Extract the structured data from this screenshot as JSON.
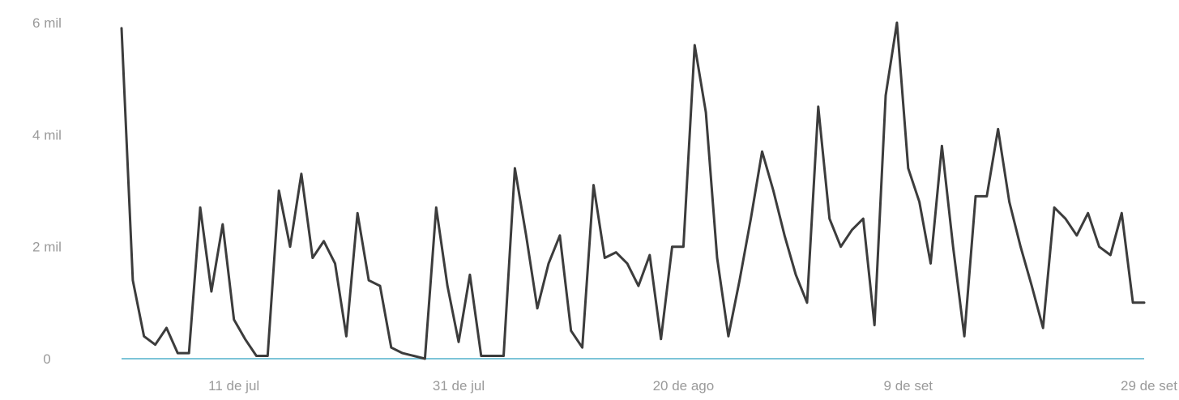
{
  "chart_data": {
    "type": "line",
    "title": "",
    "xlabel": "",
    "ylabel": "",
    "y_ticks": [
      "0",
      "2 mil",
      "4 mil",
      "6 mil"
    ],
    "x_tick_labels": [
      "11 de jul",
      "31 de jul",
      "20 de ago",
      "9 de set",
      "29 de set"
    ],
    "ylim": [
      0,
      6000
    ],
    "grid": false,
    "colors": {
      "line": "#3c3c3c",
      "baseline": "#7cc4d8",
      "tick_text": "#9a9a9a"
    },
    "series": [
      {
        "x": [
          "2024-07-01",
          "2024-07-02",
          "2024-07-03",
          "2024-07-04",
          "2024-07-05",
          "2024-07-06",
          "2024-07-07",
          "2024-07-08",
          "2024-07-09",
          "2024-07-10",
          "2024-07-11",
          "2024-07-12",
          "2024-07-13",
          "2024-07-14",
          "2024-07-15",
          "2024-07-16",
          "2024-07-17",
          "2024-07-18",
          "2024-07-19",
          "2024-07-20",
          "2024-07-21",
          "2024-07-22",
          "2024-07-23",
          "2024-07-24",
          "2024-07-25",
          "2024-07-26",
          "2024-07-27",
          "2024-07-28",
          "2024-07-29",
          "2024-07-30",
          "2024-07-31",
          "2024-08-01",
          "2024-08-02",
          "2024-08-03",
          "2024-08-04",
          "2024-08-05",
          "2024-08-06",
          "2024-08-07",
          "2024-08-08",
          "2024-08-09",
          "2024-08-10",
          "2024-08-11",
          "2024-08-12",
          "2024-08-13",
          "2024-08-14",
          "2024-08-15",
          "2024-08-16",
          "2024-08-17",
          "2024-08-18",
          "2024-08-19",
          "2024-08-20",
          "2024-08-21",
          "2024-08-22",
          "2024-08-23",
          "2024-08-24",
          "2024-08-25",
          "2024-08-26",
          "2024-08-27",
          "2024-08-28",
          "2024-08-29",
          "2024-08-30",
          "2024-08-31",
          "2024-09-01",
          "2024-09-02",
          "2024-09-03",
          "2024-09-04",
          "2024-09-05",
          "2024-09-06",
          "2024-09-07",
          "2024-09-08",
          "2024-09-09",
          "2024-09-10",
          "2024-09-11",
          "2024-09-12",
          "2024-09-13",
          "2024-09-14",
          "2024-09-15",
          "2024-09-16",
          "2024-09-17",
          "2024-09-18",
          "2024-09-19",
          "2024-09-20",
          "2024-09-21",
          "2024-09-22",
          "2024-09-23",
          "2024-09-24",
          "2024-09-25",
          "2024-09-26",
          "2024-09-27",
          "2024-09-28",
          "2024-09-29",
          "2024-09-30"
        ],
        "values": [
          5900,
          1400,
          400,
          250,
          550,
          100,
          100,
          2700,
          1200,
          2400,
          700,
          350,
          50,
          50,
          3000,
          2000,
          3300,
          1800,
          2100,
          1700,
          400,
          2600,
          1400,
          1300,
          200,
          100,
          50,
          0,
          2700,
          1300,
          300,
          1500,
          50,
          50,
          50,
          3400,
          2200,
          900,
          1700,
          2200,
          500,
          200,
          3100,
          1800,
          1900,
          1700,
          1300,
          1850,
          350,
          2000,
          2000,
          5600,
          4400,
          1800,
          400,
          1400,
          2500,
          3700,
          3000,
          2200,
          1500,
          1000,
          4500,
          2500,
          2000,
          2300,
          2500,
          600,
          4700,
          6000,
          3400,
          2800,
          1700,
          3800,
          2000,
          400,
          2900,
          2900,
          4100,
          2800,
          2000,
          1300,
          550,
          2700,
          2500,
          2200,
          2600,
          2000,
          1850,
          2600,
          1000,
          1000
        ]
      }
    ]
  }
}
